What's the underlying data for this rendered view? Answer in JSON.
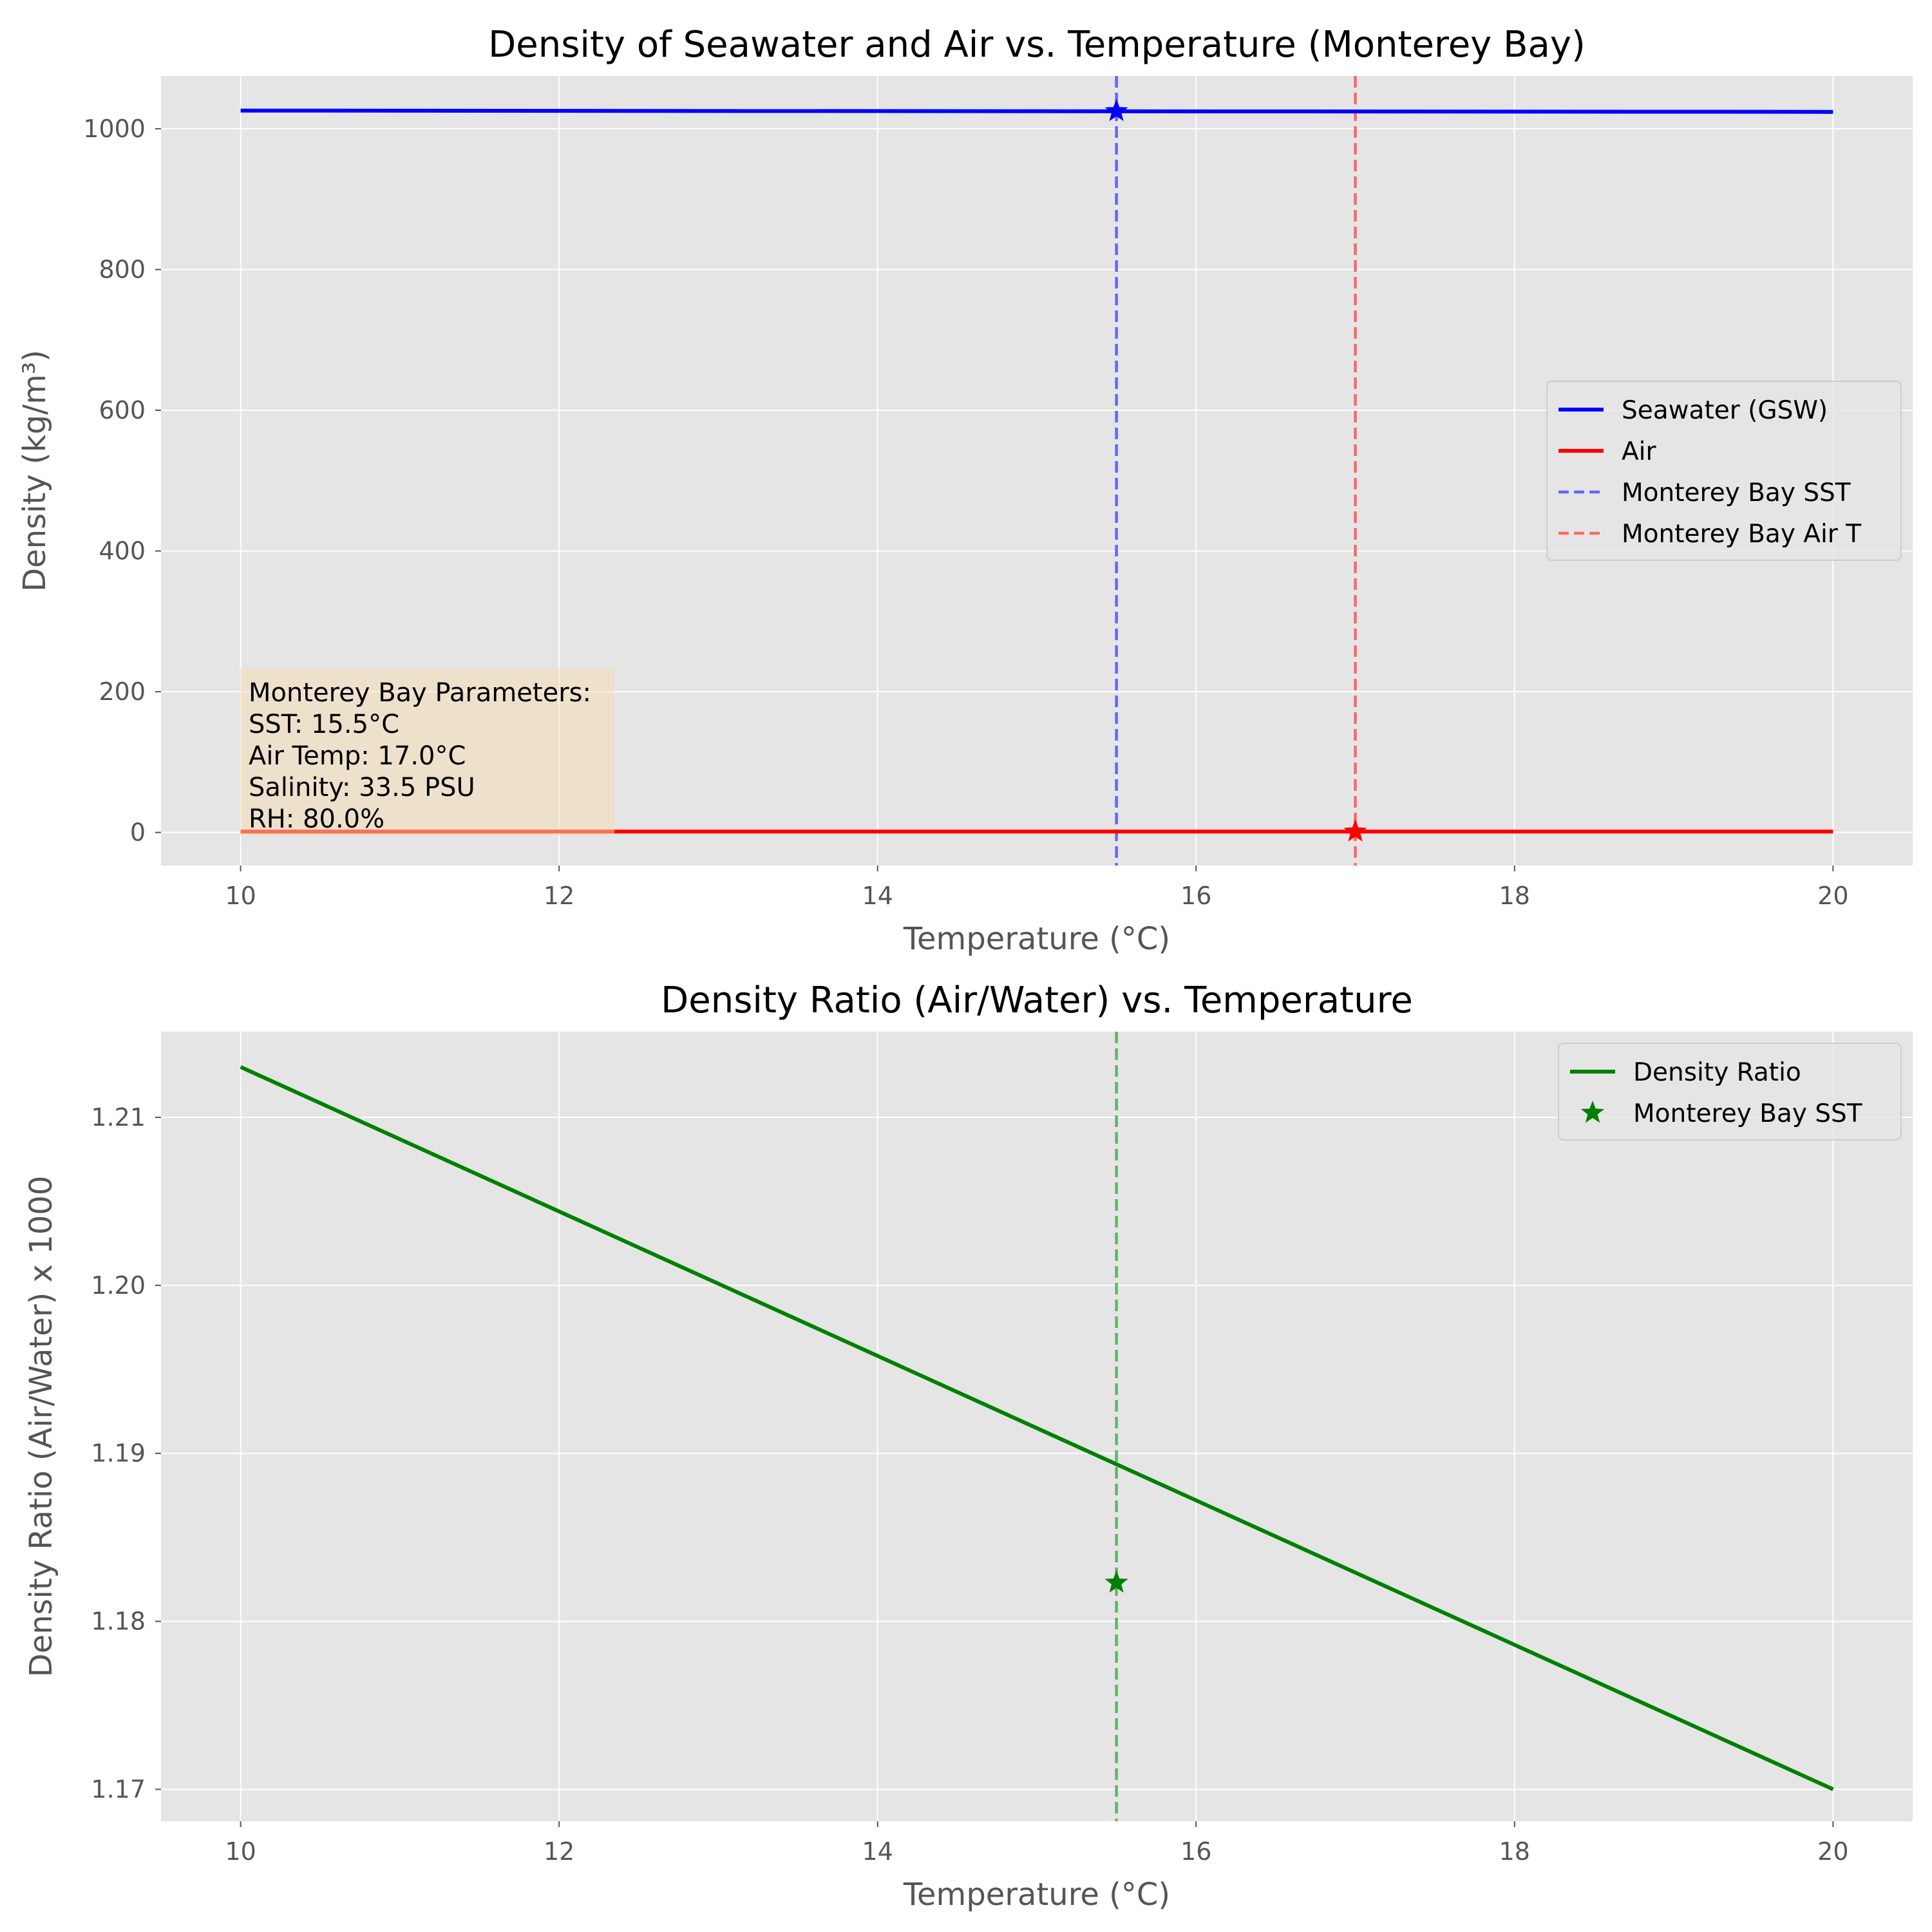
{
  "chart_data": [
    {
      "type": "line",
      "title": "Density of Seawater and Air vs. Temperature (Monterey Bay)",
      "xlabel": "Temperature (°C)",
      "ylabel": "Density (kg/m³)",
      "xlim": [
        9.5,
        20.5
      ],
      "ylim": [
        -47,
        1075
      ],
      "xticks": [
        10,
        12,
        14,
        16,
        18,
        20
      ],
      "yticks": [
        0,
        200,
        400,
        600,
        800,
        1000
      ],
      "grid": true,
      "legend_position": "center-right",
      "series": [
        {
          "name": "Seawater (GSW)",
          "x": [
            10,
            20
          ],
          "y": [
            1025.9,
            1024.0
          ],
          "color": "#0000ff",
          "style": "solid"
        },
        {
          "name": "Air",
          "x": [
            10,
            20
          ],
          "y": [
            1.24,
            1.2
          ],
          "color": "#ff0000",
          "style": "solid"
        }
      ],
      "vlines": [
        {
          "name": "Monterey Bay SST",
          "x": 15.5,
          "color": "#6666ff",
          "style": "dashed"
        },
        {
          "name": "Monterey Bay Air T",
          "x": 17.0,
          "color": "#ff6666",
          "style": "dashed"
        }
      ],
      "markers": [
        {
          "x": 15.5,
          "y": 1025.0,
          "color": "#0000ff",
          "shape": "star"
        },
        {
          "x": 17.0,
          "y": 1.21,
          "color": "#ff0000",
          "shape": "star"
        }
      ],
      "annotation": {
        "lines": [
          "Monterey Bay Parameters:",
          "SST: 15.5°C",
          "Air Temp: 17.0°C",
          "Salinity: 33.5 PSU",
          "RH: 80.0%"
        ]
      }
    },
    {
      "type": "line",
      "title": "Density Ratio (Air/Water) vs. Temperature",
      "xlabel": "Temperature (°C)",
      "ylabel": "Density Ratio (Air/Water) x 1000",
      "xlim": [
        9.5,
        20.5
      ],
      "ylim": [
        1.1681,
        1.2151
      ],
      "xticks": [
        10,
        12,
        14,
        16,
        18,
        20
      ],
      "yticks": [
        1.17,
        1.18,
        1.19,
        1.2,
        1.21
      ],
      "ytick_labels": [
        "1.17",
        "1.18",
        "1.19",
        "1.20",
        "1.21"
      ],
      "grid": true,
      "legend_position": "top-right",
      "series": [
        {
          "name": "Density Ratio",
          "x": [
            10,
            20
          ],
          "y": [
            1.213,
            1.17
          ],
          "color": "#008000",
          "style": "solid"
        }
      ],
      "vlines": [
        {
          "x": 15.5,
          "color": "#66b266",
          "style": "dashed"
        }
      ],
      "markers": [
        {
          "name": "Monterey Bay SST",
          "x": 15.5,
          "y": 1.1823,
          "color": "#008000",
          "shape": "star"
        }
      ]
    }
  ]
}
